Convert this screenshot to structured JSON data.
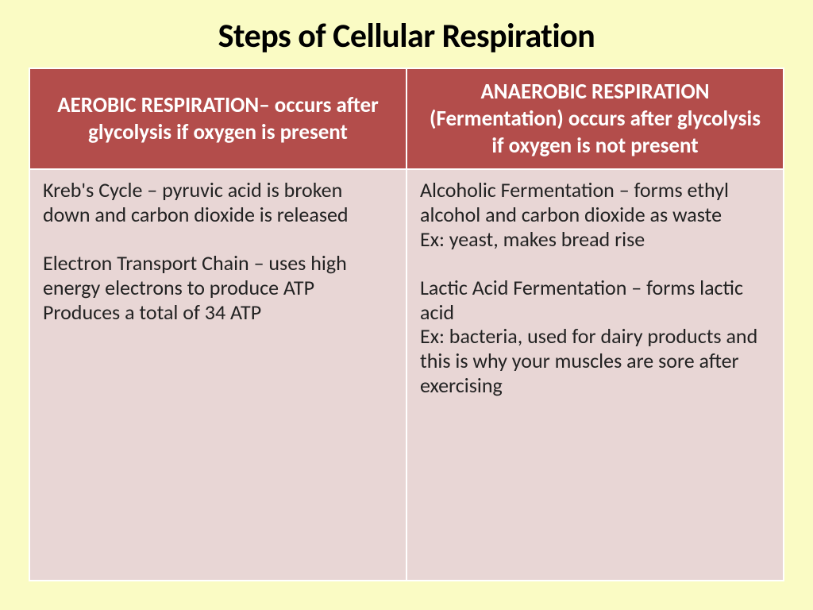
{
  "slide": {
    "title": "Steps of Cellular Respiration",
    "background_color": "#fafbc4",
    "title_color": "#000000",
    "title_fontsize": 42
  },
  "table": {
    "header_bg": "#b34d4b",
    "header_color": "#ffffff",
    "header_fontsize": 27,
    "cell_bg": "#e8d6d5",
    "cell_color": "#222222",
    "cell_fontsize": 26,
    "border_color": "#ffffff",
    "columns": [
      "AEROBIC RESPIRATION– occurs after glycolysis if oxygen is present",
      "ANAEROBIC RESPIRATION (Fermentation)\noccurs after glycolysis if oxygen is not present"
    ],
    "rows": [
      [
        "Kreb's Cycle – pyruvic acid is broken down and carbon dioxide is released\n\nElectron Transport Chain – uses high energy electrons to produce ATP Produces a total of 34 ATP",
        "Alcoholic Fermentation – forms ethyl alcohol and carbon dioxide as waste\nEx: yeast, makes bread rise\n\nLactic Acid Fermentation – forms lactic acid\nEx: bacteria, used for dairy products  and this is why your muscles are sore after exercising"
      ]
    ]
  }
}
